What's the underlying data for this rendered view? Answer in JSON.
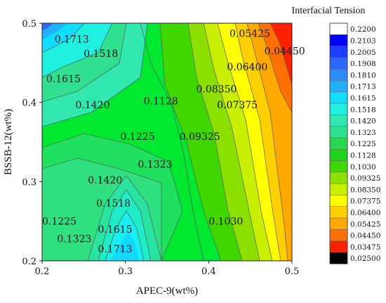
{
  "chart_data": {
    "type": "contour",
    "xlabel": "APEC-9(wt%)",
    "ylabel": "BSSB-12(wt%)",
    "xlim": [
      0.2,
      0.5
    ],
    "ylim": [
      0.2,
      0.5
    ],
    "x_ticks": [
      "0.2",
      "0.3",
      "0.4",
      "0.5"
    ],
    "y_ticks": [
      "0.2",
      "0.3",
      "0.4",
      "0.5"
    ],
    "legend_title": "Interfacial Tension",
    "legend_levels": [
      "0.2200",
      "0.2103",
      "0.2005",
      "0.1908",
      "0.1810",
      "0.1713",
      "0.1615",
      "0.1518",
      "0.1420",
      "0.1323",
      "0.1225",
      "0.1128",
      "0.1030",
      "0.09325",
      "0.08350",
      "0.07375",
      "0.06400",
      "0.05425",
      "0.04450",
      "0.03475",
      "0.02500"
    ],
    "legend_colors": [
      "#ffffff",
      "#0000ff",
      "#1a3cff",
      "#2a68ff",
      "#2a8cff",
      "#20b0ff",
      "#10ddff",
      "#20f0e0",
      "#30e8b0",
      "#30e090",
      "#28d850",
      "#1cd41c",
      "#40d800",
      "#8ce000",
      "#c8f000",
      "#ffff00",
      "#ffd000",
      "#ffa800",
      "#ff7000",
      "#ff2000",
      "#000000"
    ],
    "contour_labels": [
      {
        "x": 0.215,
        "y": 0.48,
        "text": "0.1713"
      },
      {
        "x": 0.25,
        "y": 0.462,
        "text": "0.1518"
      },
      {
        "x": 0.205,
        "y": 0.43,
        "text": "0.1615"
      },
      {
        "x": 0.24,
        "y": 0.397,
        "text": "0.1420"
      },
      {
        "x": 0.322,
        "y": 0.402,
        "text": "0.1128"
      },
      {
        "x": 0.425,
        "y": 0.487,
        "text": "0.05425"
      },
      {
        "x": 0.467,
        "y": 0.465,
        "text": "0.04450"
      },
      {
        "x": 0.422,
        "y": 0.445,
        "text": "0.06400"
      },
      {
        "x": 0.385,
        "y": 0.417,
        "text": "0.08350"
      },
      {
        "x": 0.41,
        "y": 0.397,
        "text": "0.07375"
      },
      {
        "x": 0.294,
        "y": 0.357,
        "text": "0.1225"
      },
      {
        "x": 0.365,
        "y": 0.357,
        "text": "0.09325"
      },
      {
        "x": 0.315,
        "y": 0.322,
        "text": "0.1323"
      },
      {
        "x": 0.255,
        "y": 0.302,
        "text": "0.1420"
      },
      {
        "x": 0.265,
        "y": 0.273,
        "text": "0.1518"
      },
      {
        "x": 0.2,
        "y": 0.25,
        "text": "0.1225"
      },
      {
        "x": 0.218,
        "y": 0.228,
        "text": "0.1323"
      },
      {
        "x": 0.267,
        "y": 0.24,
        "text": "0.1615"
      },
      {
        "x": 0.267,
        "y": 0.215,
        "text": "0.1713"
      },
      {
        "x": 0.4,
        "y": 0.25,
        "text": "0.1030"
      }
    ]
  }
}
